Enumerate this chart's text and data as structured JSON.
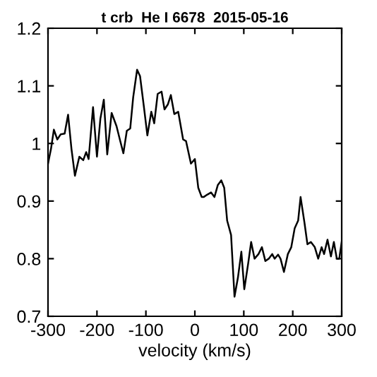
{
  "chart_data": {
    "type": "line",
    "title": "t crb  He I 6678  2015-05-16",
    "xlabel": "velocity (km/s)",
    "x": [
      -300,
      -294,
      -288,
      -281,
      -274,
      -266,
      -259,
      -252,
      -245,
      -236,
      -228,
      -222,
      -217,
      -208,
      -200,
      -193,
      -186,
      -179,
      -170,
      -160,
      -153,
      -146,
      -139,
      -132,
      -126,
      -118,
      -112,
      -104,
      -97,
      -89,
      -83,
      -76,
      -68,
      -62,
      -55,
      -49,
      -42,
      -34,
      -24,
      -18,
      -8,
      0,
      7,
      14,
      18,
      25,
      33,
      40,
      47,
      54,
      60,
      66,
      74,
      81,
      88,
      95,
      101,
      109,
      115,
      122,
      130,
      137,
      144,
      151,
      158,
      163,
      170,
      175,
      182,
      190,
      197,
      204,
      211,
      216,
      224,
      230,
      237,
      245,
      252,
      259,
      264,
      271,
      278,
      284,
      290,
      295,
      300
    ],
    "series": [
      {
        "color": "#000000",
        "values": [
          0.965,
          0.99,
          1.024,
          1.007,
          1.016,
          1.017,
          1.05,
          0.99,
          0.944,
          0.977,
          0.971,
          0.985,
          0.973,
          1.063,
          0.977,
          1.043,
          1.076,
          0.981,
          1.053,
          1.03,
          1.006,
          0.983,
          1.022,
          1.026,
          1.08,
          1.128,
          1.117,
          1.063,
          1.014,
          1.055,
          1.035,
          1.086,
          1.09,
          1.059,
          1.068,
          1.084,
          1.051,
          1.055,
          1.007,
          1.004,
          0.965,
          0.973,
          0.923,
          0.907,
          0.907,
          0.911,
          0.915,
          0.907,
          0.928,
          0.936,
          0.923,
          0.866,
          0.841,
          0.734,
          0.767,
          0.812,
          0.747,
          0.792,
          0.829,
          0.8,
          0.808,
          0.82,
          0.796,
          0.8,
          0.808,
          0.8,
          0.807,
          0.8,
          0.777,
          0.808,
          0.82,
          0.853,
          0.866,
          0.907,
          0.862,
          0.825,
          0.829,
          0.82,
          0.8,
          0.82,
          0.808,
          0.833,
          0.804,
          0.829,
          0.8,
          0.8,
          0.829
        ]
      }
    ],
    "xlim": [
      -300,
      300
    ],
    "xticks": [
      -300,
      -200,
      -100,
      0,
      100,
      200,
      300
    ],
    "ylim": [
      0.7,
      1.2
    ],
    "yticks": [
      {
        "value": 0.7,
        "label": "0.7"
      },
      {
        "value": 0.8,
        "label": "0.8"
      },
      {
        "value": 0.9,
        "label": "0.9"
      },
      {
        "value": 1.0,
        "label": "1"
      },
      {
        "value": 1.1,
        "label": "1.1"
      },
      {
        "value": 1.2,
        "label": "1.2"
      }
    ],
    "grid": false,
    "legend": false,
    "marker": "none",
    "line_style": "solid"
  }
}
